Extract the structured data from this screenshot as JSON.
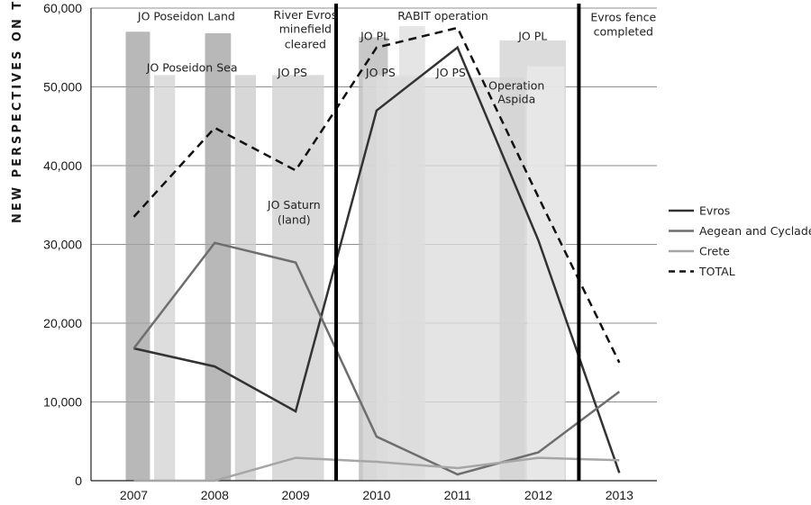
{
  "side_text": "NEW PERSPECTIVES ON T",
  "chart_data": {
    "type": "line",
    "categories": [
      "2007",
      "2008",
      "2009",
      "2010",
      "2011",
      "2012",
      "2013"
    ],
    "ylim": [
      0,
      60000
    ],
    "yticks": [
      0,
      10000,
      20000,
      30000,
      40000,
      50000,
      60000
    ],
    "ytick_labels": [
      "0",
      "10,000",
      "20,000",
      "30,000",
      "40,000",
      "50,000",
      "60,000"
    ],
    "grid": true,
    "legend_position": "right",
    "series": [
      {
        "name": "Evros",
        "color": "#333333",
        "dash": "",
        "width": 2.5,
        "values": [
          16800,
          14500,
          8800,
          47000,
          55000,
          30500,
          1000
        ]
      },
      {
        "name": "Aegean and Cyclades",
        "color": "#6e6e6e",
        "dash": "",
        "width": 2.5,
        "values": [
          16800,
          30200,
          27700,
          5600,
          800,
          3600,
          11300
        ]
      },
      {
        "name": "Crete",
        "color": "#a6a6a6",
        "dash": "",
        "width": 2.5,
        "values": [
          0,
          0,
          2900,
          2400,
          1600,
          2900,
          2600
        ]
      },
      {
        "name": "TOTAL",
        "color": "#111111",
        "dash": "9,6",
        "width": 2.5,
        "values": [
          33500,
          44800,
          39400,
          55000,
          57500,
          36000,
          15000
        ]
      }
    ],
    "operations": [
      {
        "xc": 0.05,
        "hw": 0.15,
        "top": 57000,
        "color": "#a4a4a4"
      },
      {
        "xc": 0.38,
        "hw": 0.13,
        "top": 51500,
        "color": "#d4d4d4"
      },
      {
        "xc": 1.04,
        "hw": 0.16,
        "top": 56800,
        "color": "#a4a4a4"
      },
      {
        "xc": 1.38,
        "hw": 0.13,
        "top": 51500,
        "color": "#cccccc"
      },
      {
        "xc": 2.03,
        "hw": 0.32,
        "top": 51500,
        "color": "#cfcfcf"
      },
      {
        "xc": 2.96,
        "hw": 0.18,
        "top": 56300,
        "color": "#b8b8b8"
      },
      {
        "xc": 3.27,
        "hw": 0.27,
        "top": 51500,
        "color": "#e2e2e2"
      },
      {
        "xc": 3.44,
        "hw": 0.16,
        "top": 57700,
        "color": "#dedede"
      },
      {
        "xc": 3.83,
        "hw": 1.0,
        "top": 51200,
        "color": "#dcdcdc"
      },
      {
        "xc": 4.93,
        "hw": 0.41,
        "top": 55900,
        "color": "#d2d2d2"
      },
      {
        "xc": 5.09,
        "hw": 0.23,
        "top": 52600,
        "color": "#eaeaea"
      }
    ],
    "event_lines": [
      {
        "x": 2.5,
        "label": "River Evros minefield cleared"
      },
      {
        "x": 5.5,
        "label": "Evros fence completed"
      }
    ],
    "annotations": [
      {
        "text": "JO Poseidon Land",
        "x": 0.65,
        "y": 58900
      },
      {
        "text": "JO Poseidon Sea",
        "x": 0.72,
        "y": 52400
      },
      {
        "text": "River Evros",
        "x": 2.12,
        "y": 59100
      },
      {
        "text": "minefield",
        "x": 2.12,
        "y": 57300
      },
      {
        "text": "cleared",
        "x": 2.12,
        "y": 55400
      },
      {
        "text": "JO PS",
        "x": 1.96,
        "y": 51800
      },
      {
        "text": "JO Saturn",
        "x": 1.98,
        "y": 35000
      },
      {
        "text": "(land)",
        "x": 1.98,
        "y": 33100
      },
      {
        "text": "JO PL",
        "x": 2.98,
        "y": 56400
      },
      {
        "text": "RABIT operation",
        "x": 3.82,
        "y": 59000
      },
      {
        "text": "JO PS",
        "x": 3.05,
        "y": 51800
      },
      {
        "text": "JO PS",
        "x": 3.92,
        "y": 51800
      },
      {
        "text": "Operation",
        "x": 4.73,
        "y": 50100
      },
      {
        "text": "Aspida",
        "x": 4.73,
        "y": 48400
      },
      {
        "text": "JO PL",
        "x": 4.93,
        "y": 56400
      },
      {
        "text": "Evros fence",
        "x": 6.05,
        "y": 58800
      },
      {
        "text": "completed",
        "x": 6.05,
        "y": 57000
      }
    ]
  }
}
